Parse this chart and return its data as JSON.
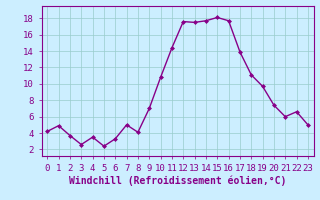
{
  "x": [
    0,
    1,
    2,
    3,
    4,
    5,
    6,
    7,
    8,
    9,
    10,
    11,
    12,
    13,
    14,
    15,
    16,
    17,
    18,
    19,
    20,
    21,
    22,
    23
  ],
  "y": [
    4.2,
    4.9,
    3.7,
    2.6,
    3.5,
    2.4,
    3.3,
    5.0,
    4.1,
    7.0,
    10.8,
    14.4,
    17.6,
    17.5,
    17.7,
    18.1,
    17.7,
    13.9,
    11.1,
    9.7,
    7.4,
    6.0,
    6.6,
    5.0
  ],
  "line_color": "#880088",
  "marker": "D",
  "marker_size": 2.0,
  "linewidth": 1.0,
  "bg_color": "#cceeff",
  "plot_bg_color": "#cceeff",
  "grid_color": "#99cccc",
  "xlabel": "Windchill (Refroidissement éolien,°C)",
  "xlabel_fontsize": 7,
  "xlabel_color": "#880088",
  "yticks": [
    2,
    4,
    6,
    8,
    10,
    12,
    14,
    16,
    18
  ],
  "xlim": [
    -0.5,
    23.5
  ],
  "ylim": [
    1.2,
    19.5
  ],
  "tick_fontsize": 6.5,
  "tick_color": "#880088"
}
